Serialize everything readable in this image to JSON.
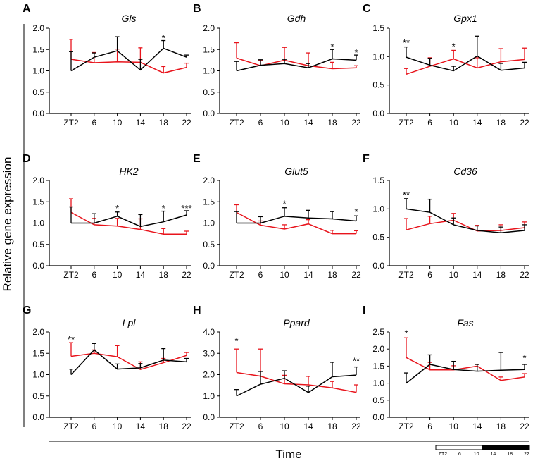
{
  "figure": {
    "ylabel": "Relative gene expression",
    "xlabel": "Time",
    "colors": {
      "series_black": "#000000",
      "series_red": "#e8141c",
      "axis": "#000000"
    },
    "light_dark_bar": {
      "labels": [
        "ZT2",
        "6",
        "10",
        "14",
        "18",
        "22"
      ],
      "light_fraction": 0.5
    }
  },
  "chart_data": [
    {
      "type": "line",
      "panel": "A",
      "title": "Gls",
      "categories": [
        "ZT2",
        "6",
        "10",
        "14",
        "18",
        "22"
      ],
      "ylim": [
        0,
        2.0
      ],
      "yticks": [
        "0.0",
        "0.5",
        "1.0",
        "1.5",
        "2.0"
      ],
      "series": [
        {
          "name": "black",
          "color": "#000000",
          "values": [
            1.0,
            1.32,
            1.47,
            1.02,
            1.53,
            1.32
          ],
          "errors": [
            0.45,
            0.1,
            0.33,
            0.25,
            0.18,
            0.05
          ]
        },
        {
          "name": "red",
          "color": "#e8141c",
          "values": [
            1.27,
            1.19,
            1.21,
            1.2,
            0.95,
            1.08
          ],
          "errors": [
            0.47,
            0.24,
            0.3,
            0.34,
            0.15,
            0.1
          ]
        }
      ],
      "annotations": [
        {
          "x": "18",
          "text": "*",
          "value": 1.76
        }
      ]
    },
    {
      "type": "line",
      "panel": "B",
      "title": "Gdh",
      "categories": [
        "ZT2",
        "6",
        "10",
        "14",
        "18",
        "22"
      ],
      "ylim": [
        0,
        2.0
      ],
      "yticks": [
        "0.0",
        "0.5",
        "1.0",
        "1.5",
        "2.0"
      ],
      "series": [
        {
          "name": "black",
          "color": "#000000",
          "values": [
            1.0,
            1.13,
            1.17,
            1.07,
            1.28,
            1.25
          ],
          "errors": [
            0.22,
            0.13,
            0.1,
            0.1,
            0.22,
            0.12
          ]
        },
        {
          "name": "red",
          "color": "#e8141c",
          "values": [
            1.3,
            1.12,
            1.25,
            1.12,
            1.05,
            1.07
          ],
          "errors": [
            0.36,
            0.12,
            0.3,
            0.3,
            0.15,
            0.05
          ]
        }
      ],
      "annotations": [
        {
          "x": "18",
          "text": "*",
          "value": 1.55
        },
        {
          "x": "22",
          "text": "*",
          "value": 1.42
        }
      ]
    },
    {
      "type": "line",
      "panel": "C",
      "title": "Gpx1",
      "categories": [
        "ZT2",
        "6",
        "10",
        "14",
        "18",
        "22"
      ],
      "ylim": [
        0,
        1.5
      ],
      "yticks": [
        "0.0",
        "0.5",
        "1.0",
        "1.5"
      ],
      "series": [
        {
          "name": "black",
          "color": "#000000",
          "values": [
            0.99,
            0.85,
            0.75,
            1.01,
            0.76,
            0.8
          ],
          "errors": [
            0.18,
            0.12,
            0.08,
            0.35,
            0.12,
            0.1
          ]
        },
        {
          "name": "red",
          "color": "#e8141c",
          "values": [
            0.69,
            0.83,
            0.96,
            0.8,
            0.91,
            0.95
          ],
          "errors": [
            0.1,
            0.15,
            0.15,
            0.18,
            0.23,
            0.2
          ]
        }
      ],
      "annotations": [
        {
          "x": "ZT2",
          "text": "**",
          "value": 1.24
        },
        {
          "x": "10",
          "text": "*",
          "value": 1.17
        }
      ]
    },
    {
      "type": "line",
      "panel": "D",
      "title": "HK2",
      "categories": [
        "ZT2",
        "6",
        "10",
        "14",
        "18",
        "22"
      ],
      "ylim": [
        0,
        2.0
      ],
      "yticks": [
        "0.0",
        "0.5",
        "1.0",
        "1.5",
        "2.0"
      ],
      "series": [
        {
          "name": "black",
          "color": "#000000",
          "values": [
            1.0,
            1.0,
            1.16,
            0.92,
            1.03,
            1.19
          ],
          "errors": [
            0.38,
            0.22,
            0.1,
            0.28,
            0.25,
            0.1
          ]
        },
        {
          "name": "red",
          "color": "#e8141c",
          "values": [
            1.25,
            0.96,
            0.93,
            0.85,
            0.74,
            0.74
          ],
          "errors": [
            0.32,
            0.15,
            0.18,
            0.25,
            0.13,
            0.07
          ]
        }
      ],
      "annotations": [
        {
          "x": "10",
          "text": "*",
          "value": 1.34
        },
        {
          "x": "18",
          "text": "*",
          "value": 1.34
        },
        {
          "x": "22",
          "text": "***",
          "value": 1.34
        }
      ]
    },
    {
      "type": "line",
      "panel": "E",
      "title": "Glut5",
      "categories": [
        "ZT2",
        "6",
        "10",
        "14",
        "18",
        "22"
      ],
      "ylim": [
        0,
        2.0
      ],
      "yticks": [
        "0.0",
        "0.5",
        "1.0",
        "1.5",
        "2.0"
      ],
      "series": [
        {
          "name": "black",
          "color": "#000000",
          "values": [
            1.0,
            1.0,
            1.16,
            1.12,
            1.1,
            1.05
          ],
          "errors": [
            0.27,
            0.15,
            0.2,
            0.18,
            0.17,
            0.12
          ]
        },
        {
          "name": "red",
          "color": "#e8141c",
          "values": [
            1.25,
            0.95,
            0.86,
            0.98,
            0.75,
            0.75
          ],
          "errors": [
            0.18,
            0.1,
            0.1,
            0.1,
            0.08,
            0.07
          ]
        }
      ],
      "annotations": [
        {
          "x": "10",
          "text": "*",
          "value": 1.45
        },
        {
          "x": "22",
          "text": "*",
          "value": 1.26
        }
      ]
    },
    {
      "type": "line",
      "panel": "F",
      "title": "Cd36",
      "categories": [
        "ZT2",
        "6",
        "10",
        "14",
        "18",
        "22"
      ],
      "ylim": [
        0,
        1.5
      ],
      "yticks": [
        "0.0",
        "0.5",
        "1.0",
        "1.5"
      ],
      "series": [
        {
          "name": "black",
          "color": "#000000",
          "values": [
            1.0,
            0.94,
            0.72,
            0.62,
            0.58,
            0.62
          ],
          "errors": [
            0.18,
            0.23,
            0.12,
            0.08,
            0.1,
            0.1
          ]
        },
        {
          "name": "red",
          "color": "#e8141c",
          "values": [
            0.63,
            0.74,
            0.8,
            0.61,
            0.62,
            0.67
          ],
          "errors": [
            0.2,
            0.13,
            0.12,
            0.1,
            0.1,
            0.1
          ]
        }
      ],
      "annotations": [
        {
          "x": "ZT2",
          "text": "**",
          "value": 1.24
        }
      ]
    },
    {
      "type": "line",
      "panel": "G",
      "title": "Lpl",
      "categories": [
        "ZT2",
        "6",
        "10",
        "14",
        "18",
        "22"
      ],
      "ylim": [
        0,
        2.0
      ],
      "yticks": [
        "0.0",
        "0.5",
        "1.0",
        "1.5",
        "2.0"
      ],
      "series": [
        {
          "name": "black",
          "color": "#000000",
          "values": [
            1.0,
            1.58,
            1.13,
            1.16,
            1.34,
            1.3
          ],
          "errors": [
            0.13,
            0.15,
            0.12,
            0.1,
            0.27,
            0.08
          ]
        },
        {
          "name": "red",
          "color": "#e8141c",
          "values": [
            1.43,
            1.5,
            1.42,
            1.12,
            1.28,
            1.45
          ],
          "errors": [
            0.32,
            0.08,
            0.26,
            0.18,
            0.1,
            0.07
          ]
        }
      ],
      "annotations": [
        {
          "x": "ZT2",
          "text": "**",
          "value": 1.82
        }
      ]
    },
    {
      "type": "line",
      "panel": "H",
      "title": "Ppard",
      "categories": [
        "ZT2",
        "6",
        "10",
        "14",
        "18",
        "22"
      ],
      "ylim": [
        0,
        4.0
      ],
      "yticks": [
        "0.0",
        "1.0",
        "2.0",
        "3.0",
        "4.0"
      ],
      "series": [
        {
          "name": "black",
          "color": "#000000",
          "values": [
            1.0,
            1.55,
            1.83,
            1.16,
            1.9,
            1.98
          ],
          "errors": [
            0.3,
            0.6,
            0.35,
            0.3,
            0.68,
            0.38
          ]
        },
        {
          "name": "red",
          "color": "#e8141c",
          "values": [
            2.1,
            1.93,
            1.57,
            1.52,
            1.38,
            1.17
          ],
          "errors": [
            1.1,
            1.27,
            0.4,
            0.4,
            0.3,
            0.35
          ]
        }
      ],
      "annotations": [
        {
          "x": "ZT2",
          "text": "*",
          "value": 3.55
        },
        {
          "x": "22",
          "text": "**",
          "value": 2.62
        }
      ]
    },
    {
      "type": "line",
      "panel": "I",
      "title": "Fas",
      "categories": [
        "ZT2",
        "6",
        "10",
        "14",
        "18",
        "22"
      ],
      "ylim": [
        0,
        2.5
      ],
      "yticks": [
        "0.0",
        "0.5",
        "1.0",
        "1.5",
        "2.0",
        "2.5"
      ],
      "series": [
        {
          "name": "black",
          "color": "#000000",
          "values": [
            1.0,
            1.55,
            1.4,
            1.35,
            1.38,
            1.4
          ],
          "errors": [
            0.3,
            0.28,
            0.24,
            0.2,
            0.52,
            0.15
          ]
        },
        {
          "name": "red",
          "color": "#e8141c",
          "values": [
            1.75,
            1.39,
            1.39,
            1.5,
            1.08,
            1.18
          ],
          "errors": [
            0.58,
            0.22,
            0.12,
            0.05,
            0.1,
            0.1
          ]
        }
      ],
      "annotations": [
        {
          "x": "ZT2",
          "text": "*",
          "value": 2.45
        },
        {
          "x": "22",
          "text": "*",
          "value": 1.73
        }
      ]
    }
  ]
}
